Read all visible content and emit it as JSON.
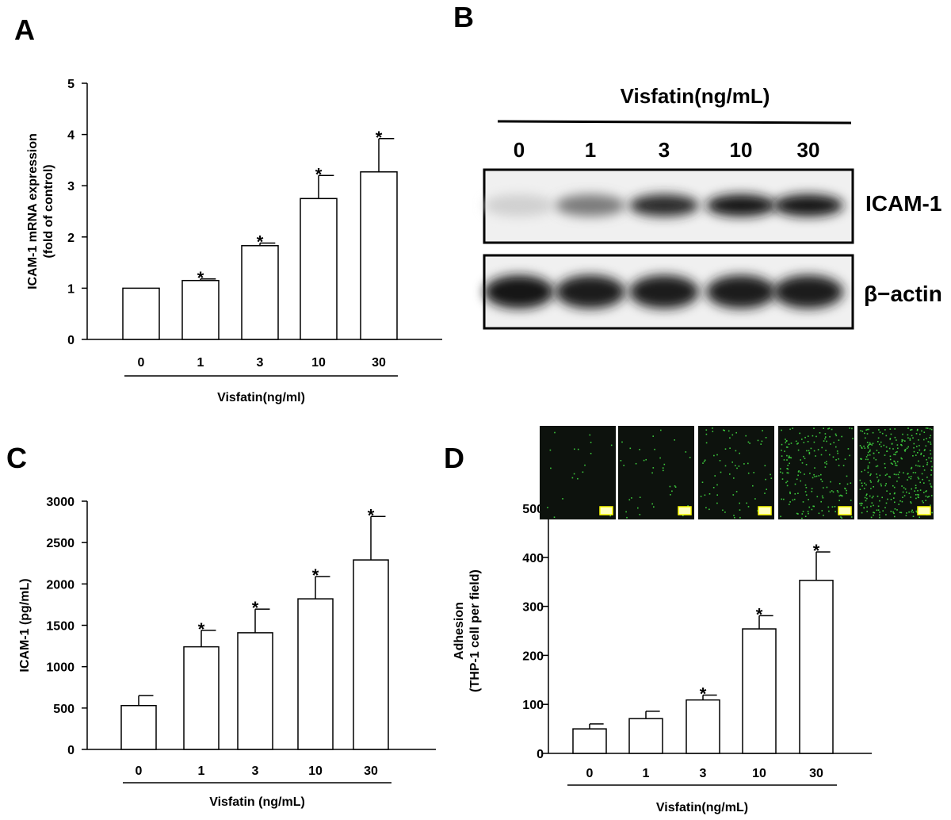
{
  "panels": {
    "A": {
      "label": "A"
    },
    "B": {
      "label": "B"
    },
    "C": {
      "label": "C"
    },
    "D": {
      "label": "D"
    }
  },
  "blot": {
    "title": "Visfatin(ng/mL)",
    "lanes": [
      "0",
      "1",
      "3",
      "10",
      "30"
    ],
    "rows": [
      {
        "protein": "ICAM-1",
        "intensity": [
          0.12,
          0.5,
          0.85,
          0.95,
          0.95
        ]
      },
      {
        "protein": "β−actin",
        "intensity": [
          0.95,
          0.92,
          0.92,
          0.92,
          0.92
        ]
      }
    ]
  },
  "micrographs": {
    "count": 5,
    "color": "#3cc83c",
    "relative_density": [
      0.03,
      0.06,
      0.12,
      0.32,
      0.55
    ]
  },
  "chart_data": [
    {
      "id": "A",
      "type": "bar",
      "categories": [
        "0",
        "1",
        "3",
        "10",
        "30"
      ],
      "values": [
        1.0,
        1.15,
        1.83,
        2.75,
        3.27
      ],
      "errors": [
        0,
        0.03,
        0.05,
        0.45,
        0.65
      ],
      "significant": [
        false,
        true,
        true,
        true,
        true
      ],
      "ylabel_lines": [
        "ICAM-1 mRNA expression",
        "(fold of control)"
      ],
      "xlabel": "Visfatin(ng/ml)",
      "ylim": [
        0,
        5
      ],
      "yticks": [
        0,
        1,
        2,
        3,
        4,
        5
      ],
      "ytick_labels": [
        "0",
        "1",
        "2",
        "3",
        "4",
        "5"
      ]
    },
    {
      "id": "C",
      "type": "bar",
      "categories": [
        "0",
        "1",
        "3",
        "10",
        "30"
      ],
      "values": [
        530,
        1240,
        1410,
        1820,
        2290
      ],
      "errors": [
        120,
        200,
        285,
        270,
        525
      ],
      "significant": [
        false,
        true,
        true,
        true,
        true
      ],
      "ylabel_lines": [
        "ICAM-1 (pg/mL)"
      ],
      "xlabel": "Visfatin (ng/mL)",
      "ylim": [
        0,
        3000
      ],
      "yticks": [
        0,
        500,
        1000,
        1500,
        2000,
        2500,
        3000
      ],
      "ytick_labels": [
        "0",
        "500",
        "1000",
        "1500",
        "2000",
        "2500",
        "3000"
      ]
    },
    {
      "id": "D",
      "type": "bar",
      "categories": [
        "0",
        "1",
        "3",
        "10",
        "30"
      ],
      "values": [
        50,
        71,
        109,
        254,
        353
      ],
      "errors": [
        10,
        15,
        10,
        27,
        58
      ],
      "significant": [
        false,
        false,
        true,
        true,
        true
      ],
      "ylabel_lines": [
        "Adhesion",
        "(THP-1 cell per field)"
      ],
      "xlabel": "Visfatin(ng/mL)",
      "ylim": [
        0,
        500
      ],
      "yticks": [
        0,
        100,
        200,
        300,
        400,
        500
      ],
      "ytick_labels": [
        "0",
        "100",
        "200",
        "300",
        "400",
        "500"
      ]
    }
  ],
  "significance_marker": "*"
}
